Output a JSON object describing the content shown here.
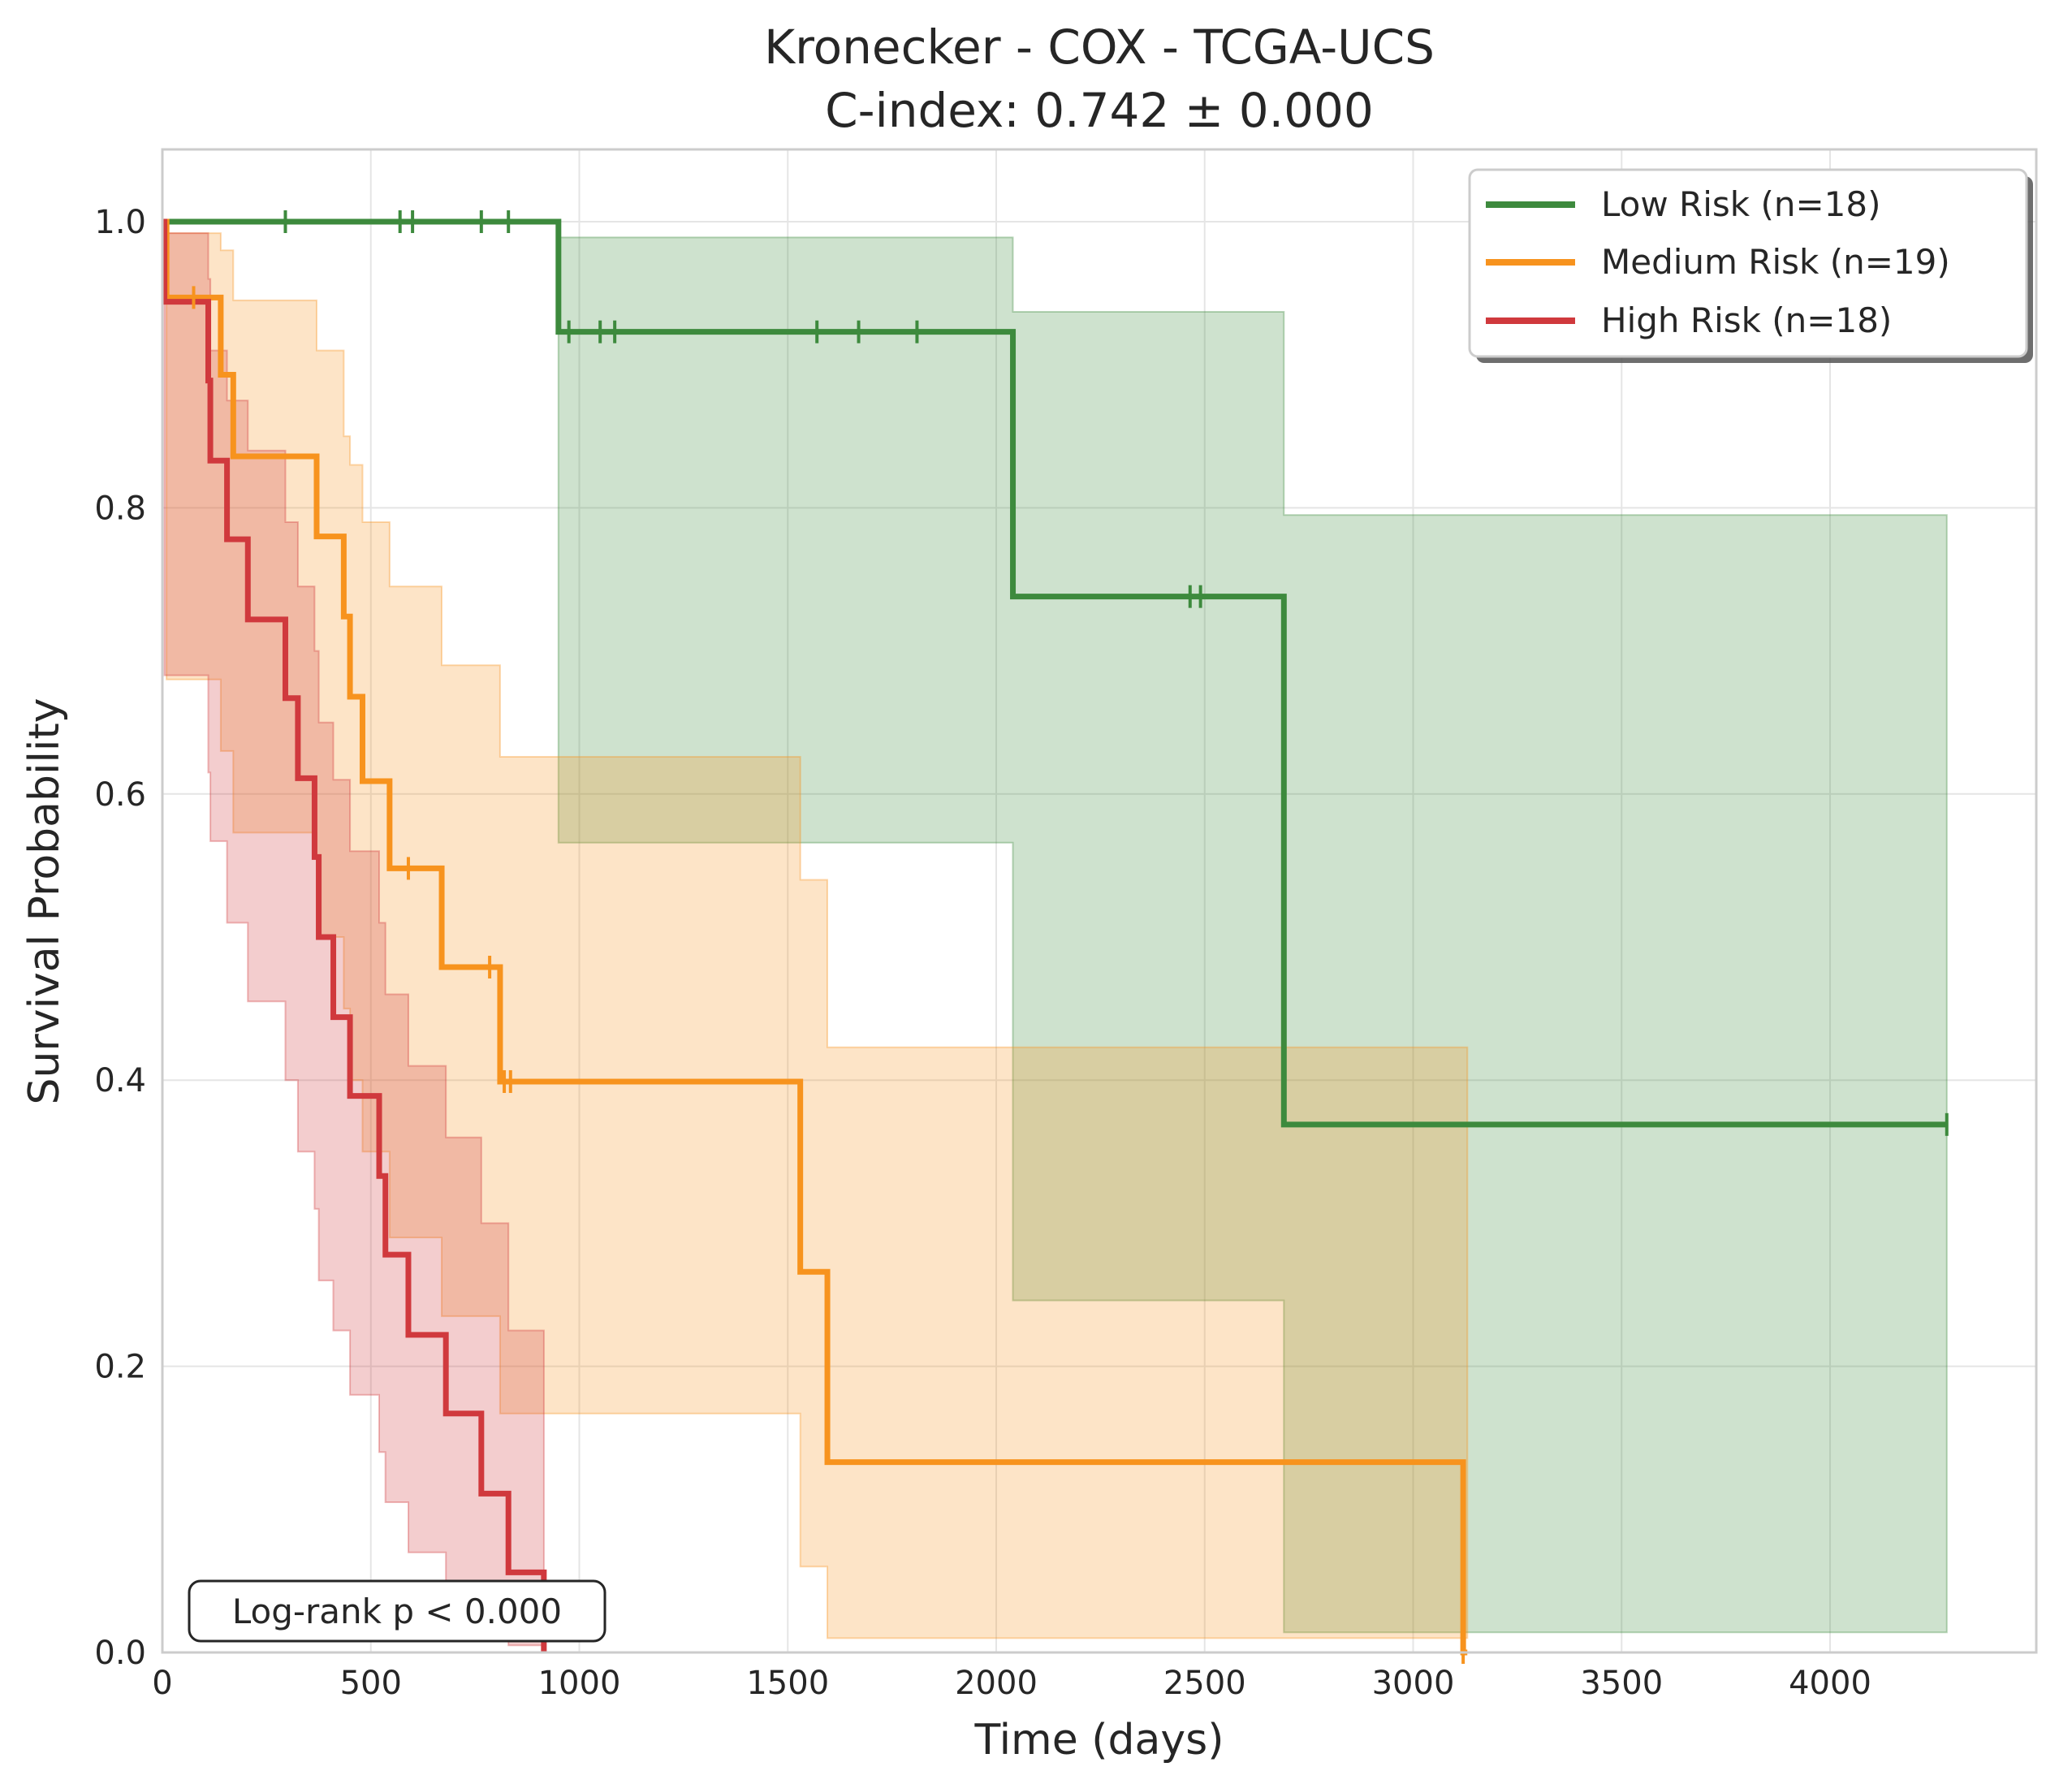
{
  "chart_data": {
    "type": "line",
    "title": "Kronecker - COX - TCGA-UCS",
    "subtitle": "C-index: 0.742 ± 0.000",
    "xlabel": "Time (days)",
    "ylabel": "Survival Probability",
    "xlim": [
      0,
      4450
    ],
    "ylim": [
      0,
      1.05
    ],
    "xticks": [
      0,
      500,
      1000,
      1500,
      2000,
      2500,
      3000,
      3500,
      4000
    ],
    "yticks": [
      0.0,
      0.2,
      0.4,
      0.6,
      0.8,
      1.0
    ],
    "xtick_labels": [
      "0",
      "500",
      "1000",
      "1500",
      "2000",
      "2500",
      "3000",
      "3500",
      "4000"
    ],
    "ytick_labels": [
      "0.0",
      "0.2",
      "0.4",
      "0.6",
      "0.8",
      "1.0"
    ],
    "grid": true,
    "legend_position": "top-right",
    "annotation": "Log-rank p < 0.000",
    "series": [
      {
        "name": "Low Risk (n=18)",
        "color": "#3d8a3d",
        "steps": [
          [
            0,
            1.0
          ],
          [
            950,
            0.923
          ],
          [
            2040,
            0.738
          ],
          [
            2690,
            0.369
          ],
          [
            4280,
            0.369
          ]
        ],
        "ci": [
          {
            "t": 0,
            "lo": 1.0,
            "hi": 1.0
          },
          {
            "t": 950,
            "lo": 0.566,
            "hi": 0.989
          },
          {
            "t": 2040,
            "lo": 0.246,
            "hi": 0.937
          },
          {
            "t": 2690,
            "lo": 0.014,
            "hi": 0.795
          },
          {
            "t": 4280,
            "lo": 0.014,
            "hi": 0.795
          }
        ],
        "censors": [
          295,
          570,
          600,
          765,
          830,
          975,
          1050,
          1085,
          1570,
          1670,
          1810,
          2465,
          2490,
          4280
        ]
      },
      {
        "name": "Medium Risk (n=19)",
        "color": "#f7931e",
        "steps": [
          [
            0,
            1.0
          ],
          [
            10,
            0.947
          ],
          [
            140,
            0.893
          ],
          [
            170,
            0.836
          ],
          [
            370,
            0.78
          ],
          [
            435,
            0.724
          ],
          [
            450,
            0.668
          ],
          [
            480,
            0.609
          ],
          [
            545,
            0.548
          ],
          [
            670,
            0.479
          ],
          [
            810,
            0.399
          ],
          [
            1530,
            0.266
          ],
          [
            1595,
            0.133
          ],
          [
            3120,
            0.0
          ],
          [
            3130,
            0.0
          ]
        ],
        "ci": [
          {
            "t": 0,
            "lo": 1.0,
            "hi": 1.0
          },
          {
            "t": 10,
            "lo": 0.68,
            "hi": 0.992
          },
          {
            "t": 140,
            "lo": 0.63,
            "hi": 0.98
          },
          {
            "t": 170,
            "lo": 0.573,
            "hi": 0.945
          },
          {
            "t": 370,
            "lo": 0.5,
            "hi": 0.91
          },
          {
            "t": 435,
            "lo": 0.45,
            "hi": 0.85
          },
          {
            "t": 450,
            "lo": 0.4,
            "hi": 0.83
          },
          {
            "t": 480,
            "lo": 0.35,
            "hi": 0.79
          },
          {
            "t": 545,
            "lo": 0.29,
            "hi": 0.745
          },
          {
            "t": 670,
            "lo": 0.235,
            "hi": 0.69
          },
          {
            "t": 810,
            "lo": 0.167,
            "hi": 0.626
          },
          {
            "t": 1530,
            "lo": 0.06,
            "hi": 0.54
          },
          {
            "t": 1595,
            "lo": 0.01,
            "hi": 0.423
          },
          {
            "t": 3120,
            "lo": 0.01,
            "hi": 0.423
          },
          {
            "t": 3130,
            "lo": 0.01,
            "hi": 0.423
          }
        ],
        "censors": [
          75,
          590,
          785,
          820,
          835,
          3120
        ]
      },
      {
        "name": "High Risk (n=18)",
        "color": "#d0393d",
        "steps": [
          [
            0,
            1.0
          ],
          [
            5,
            0.944
          ],
          [
            110,
            0.889
          ],
          [
            115,
            0.833
          ],
          [
            155,
            0.778
          ],
          [
            205,
            0.722
          ],
          [
            295,
            0.667
          ],
          [
            325,
            0.611
          ],
          [
            365,
            0.556
          ],
          [
            375,
            0.5
          ],
          [
            410,
            0.444
          ],
          [
            450,
            0.389
          ],
          [
            520,
            0.333
          ],
          [
            535,
            0.278
          ],
          [
            590,
            0.222
          ],
          [
            680,
            0.167
          ],
          [
            765,
            0.111
          ],
          [
            830,
            0.056
          ],
          [
            915,
            0.0
          ]
        ],
        "ci": [
          {
            "t": 0,
            "lo": 1.0,
            "hi": 1.0
          },
          {
            "t": 5,
            "lo": 0.683,
            "hi": 0.992
          },
          {
            "t": 110,
            "lo": 0.615,
            "hi": 0.96
          },
          {
            "t": 115,
            "lo": 0.567,
            "hi": 0.91
          },
          {
            "t": 155,
            "lo": 0.51,
            "hi": 0.875
          },
          {
            "t": 205,
            "lo": 0.455,
            "hi": 0.84
          },
          {
            "t": 295,
            "lo": 0.4,
            "hi": 0.79
          },
          {
            "t": 325,
            "lo": 0.35,
            "hi": 0.745
          },
          {
            "t": 365,
            "lo": 0.31,
            "hi": 0.7
          },
          {
            "t": 375,
            "lo": 0.26,
            "hi": 0.65
          },
          {
            "t": 410,
            "lo": 0.225,
            "hi": 0.61
          },
          {
            "t": 450,
            "lo": 0.18,
            "hi": 0.56
          },
          {
            "t": 520,
            "lo": 0.14,
            "hi": 0.51
          },
          {
            "t": 535,
            "lo": 0.105,
            "hi": 0.46
          },
          {
            "t": 590,
            "lo": 0.07,
            "hi": 0.41
          },
          {
            "t": 680,
            "lo": 0.04,
            "hi": 0.36
          },
          {
            "t": 765,
            "lo": 0.015,
            "hi": 0.3
          },
          {
            "t": 830,
            "lo": 0.005,
            "hi": 0.225
          },
          {
            "t": 915,
            "lo": 0.005,
            "hi": 0.225
          }
        ],
        "censors": []
      }
    ]
  }
}
